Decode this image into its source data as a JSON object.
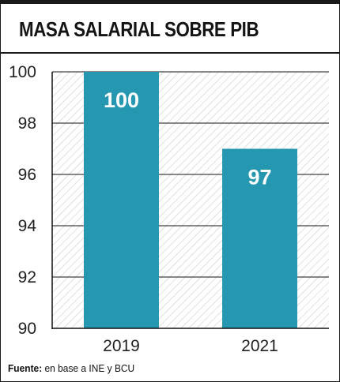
{
  "title": "MASA SALARIAL SOBRE PIB",
  "source": {
    "label": "Fuente:",
    "text": " en base a INE y BCU"
  },
  "colors": {
    "bar": "#2597b0",
    "axis": "#111111",
    "grid": "#111111",
    "hatch": "#d9d9d9",
    "label": "#ffffff"
  },
  "chart_data": {
    "type": "bar",
    "categories": [
      "2019",
      "2021"
    ],
    "values": [
      100,
      97
    ],
    "data_labels": [
      "100",
      "97"
    ],
    "title": "MASA SALARIAL SOBRE PIB",
    "xlabel": "",
    "ylabel": "",
    "ylim": [
      90,
      100
    ],
    "yticks": [
      90,
      92,
      94,
      96,
      98,
      100
    ],
    "ytick_labels": [
      "90",
      "92",
      "94",
      "96",
      "98",
      "100"
    ],
    "grid": true,
    "legend": "none"
  }
}
